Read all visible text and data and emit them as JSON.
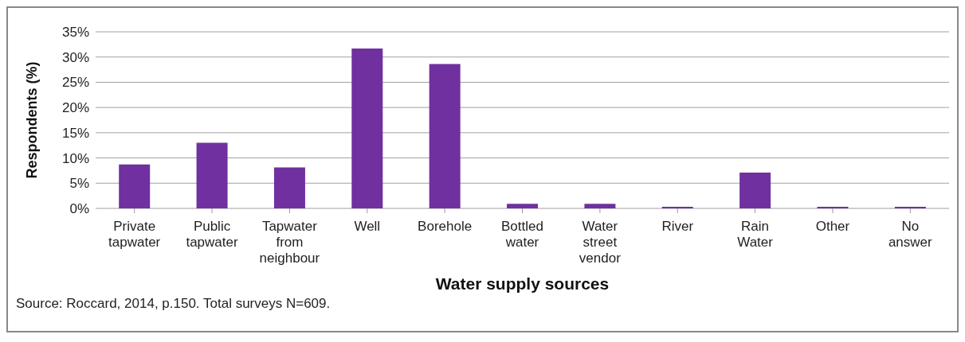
{
  "chart_data": {
    "type": "bar",
    "xlabel": "Water supply sources",
    "ylabel": "Respondents (%)",
    "categories": [
      "Private tapwater",
      "Public tapwater",
      "Tapwater from neighbour",
      "Well",
      "Borehole",
      "Bottled water",
      "Water street vendor",
      "River",
      "Rain Water",
      "Other",
      "No answer"
    ],
    "values": [
      8.7,
      13.0,
      8.1,
      31.7,
      28.6,
      0.9,
      0.9,
      0.3,
      7.1,
      0.3,
      0.3
    ],
    "color": "#7030a0",
    "ylim": [
      0,
      35
    ],
    "yticks": [
      {
        "value": 0,
        "label": "0%"
      },
      {
        "value": 5,
        "label": "5%"
      },
      {
        "value": 10,
        "label": "10%"
      },
      {
        "value": 15,
        "label": "15%"
      },
      {
        "value": 20,
        "label": "20%"
      },
      {
        "value": 25,
        "label": "25%"
      },
      {
        "value": 30,
        "label": "30%"
      },
      {
        "value": 35,
        "label": "35%"
      }
    ],
    "grid": "y",
    "annotations": [
      "Source: Roccard, 2014, p.150. Total surveys N=609."
    ]
  }
}
